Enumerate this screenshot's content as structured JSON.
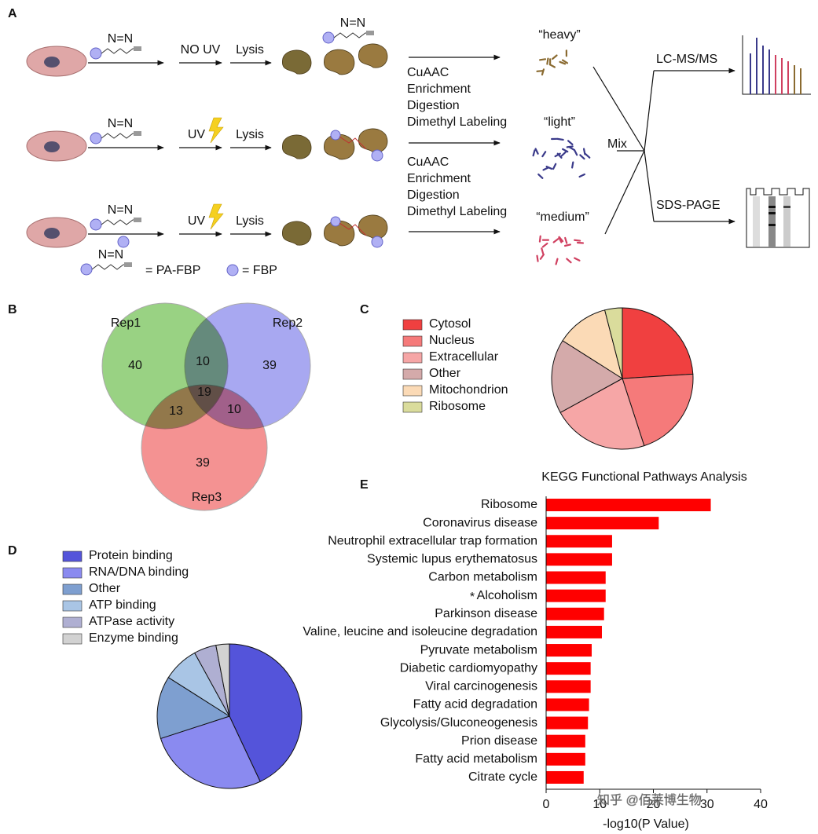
{
  "panel_labels": [
    "A",
    "B",
    "C",
    "D",
    "E"
  ],
  "panel_a": {
    "steps": [
      {
        "treatment": "NO UV",
        "lysis": "Lysis"
      },
      {
        "treatment": "UV",
        "lysis": "Lysis"
      },
      {
        "treatment": "UV",
        "lysis": "Lysis"
      }
    ],
    "diazirine": "N=N",
    "workup": [
      [
        "CuAAC",
        "Enrichment",
        "Digestion",
        "Dimethyl Labeling"
      ],
      [
        "CuAAC",
        "Enrichment",
        "Digestion",
        "Dimethyl Labeling"
      ]
    ],
    "fractions": [
      "“heavy”",
      "“light”",
      "“medium”"
    ],
    "mix": "Mix",
    "outputs": [
      "LC-MS/MS",
      "SDS-PAGE"
    ],
    "legend": [
      "= PA-FBP",
      "= FBP"
    ]
  },
  "chart_data": [
    {
      "type": "venn",
      "sets": [
        {
          "name": "Rep1",
          "color": "#72c053"
        },
        {
          "name": "Rep2",
          "color": "#8686ec"
        },
        {
          "name": "Rep3",
          "color": "#f06868"
        }
      ],
      "values": [
        40,
        39,
        39,
        10,
        13,
        10,
        19
      ]
    },
    {
      "type": "pie",
      "categories": [
        "Cytosol",
        "Nucleus",
        "Extracellular",
        "Other",
        "Mitochondrion",
        "Ribosome"
      ],
      "values": [
        24,
        21,
        22,
        17,
        12,
        4
      ],
      "colors": [
        "#f04040",
        "#f57a7a",
        "#f6a6a6",
        "#d4aaaa",
        "#fbdab6",
        "#dadc9c"
      ]
    },
    {
      "type": "pie",
      "categories": [
        "Protein binding",
        "RNA/DNA binding",
        "Other",
        "ATP binding",
        "ATPase activity",
        "Enzyme binding"
      ],
      "values": [
        43,
        27,
        14,
        8,
        5,
        3
      ],
      "colors": [
        "#5454da",
        "#8a8af0",
        "#7e9fd0",
        "#a9c5e5",
        "#afafd2",
        "#d2d2d2"
      ]
    },
    {
      "type": "hbar",
      "title": "KEGG Functional Pathways Analysis",
      "categories": [
        "Ribosome",
        "Coronavirus disease",
        "Neutrophil extracellular trap formation",
        "Systemic lupus erythematosus",
        "Carbon metabolism",
        "Alcoholism",
        "Parkinson disease",
        "Valine, leucine and isoleucine degradation",
        "Pyruvate metabolism",
        "Diabetic cardiomyopathy",
        "Viral carcinogenesis",
        "Fatty acid degradation",
        "Glycolysis/Gluconeogenesis",
        "Prion disease",
        "Fatty acid metabolism",
        "Citrate cycle"
      ],
      "values": [
        30.7,
        21,
        12.3,
        12.3,
        11.1,
        11.1,
        10.8,
        10.4,
        8.5,
        8.3,
        8.3,
        8.0,
        7.8,
        7.3,
        7.3,
        7.0
      ],
      "color": "#ff0000",
      "xlim": [
        0,
        40
      ],
      "xticks": [
        0,
        10,
        20,
        30,
        40
      ],
      "xlabel": "-log10(P Value)",
      "annotation": "*"
    }
  ],
  "watermark": "知乎 @佰莱博生物"
}
